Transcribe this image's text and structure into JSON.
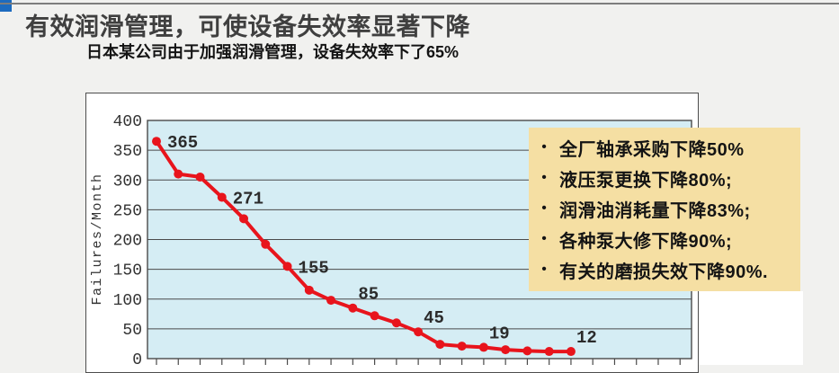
{
  "slide": {
    "title": "有效润滑管理，可使设备失效率显著下降",
    "subtitle": "日本某公司由于加强润滑管理，设备失效率下了65%"
  },
  "callout": {
    "bg_color": "#f5dfa3",
    "bullet_glyph": "•",
    "bullets": [
      "全厂轴承采购下降50%",
      "液压泵更换下降80%;",
      "润滑油消耗量下降83%;",
      "各种泵大修下降90%;",
      "有关的磨损失效下降90%."
    ]
  },
  "chart_data": {
    "type": "line",
    "title": "",
    "xlabel": "",
    "ylabel": "Failures/Month",
    "ylim": [
      0,
      400
    ],
    "yticks": [
      400,
      350,
      300,
      250,
      200,
      150,
      100,
      50,
      0
    ],
    "grid": true,
    "legend": "none",
    "plot_bg": "#d5edf4",
    "grid_color": "#4a4a4a",
    "line_color": "#e8141c",
    "axis_text_color": "#333333",
    "x": [
      1,
      2,
      3,
      4,
      5,
      6,
      7,
      8,
      9,
      10,
      11,
      12,
      13,
      14,
      15,
      16,
      17,
      18,
      19,
      20
    ],
    "values": [
      365,
      310,
      305,
      271,
      235,
      192,
      155,
      115,
      98,
      85,
      72,
      60,
      45,
      24,
      21,
      19,
      15,
      13,
      12,
      12
    ],
    "point_labels": [
      {
        "index": 0,
        "text": "365",
        "placement": "right"
      },
      {
        "index": 3,
        "text": "271",
        "placement": "right"
      },
      {
        "index": 6,
        "text": "155",
        "placement": "right"
      },
      {
        "index": 9,
        "text": "85",
        "placement": "above"
      },
      {
        "index": 12,
        "text": "45",
        "placement": "above"
      },
      {
        "index": 15,
        "text": "19",
        "placement": "above"
      },
      {
        "index": 19,
        "text": "12",
        "placement": "above"
      }
    ],
    "x_tick_count": 25,
    "x_axis_labels_visible": false
  }
}
